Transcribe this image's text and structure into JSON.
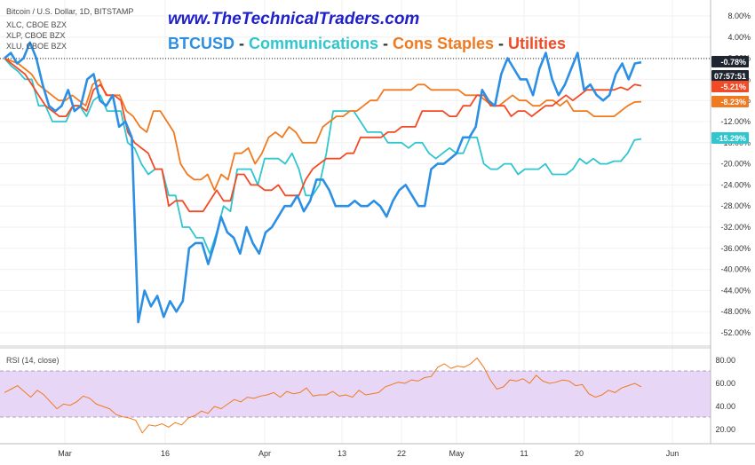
{
  "chart_data": {
    "type": "line",
    "symbol_lines": [
      "Bitcoin / U.S. Dollar, 1D, BITSTAMP",
      "XLC, CBOE BZX",
      "XLP, CBOE BZX",
      "XLU, CBOE BZX"
    ],
    "website": "www.TheTechnicalTraders.com",
    "headline": {
      "parts": [
        {
          "text": "BTCUSD",
          "color": "#2c8fe3"
        },
        {
          "text": " - ",
          "color": "#333333"
        },
        {
          "text": "Communications",
          "color": "#2fc6cf"
        },
        {
          "text": " - ",
          "color": "#333333"
        },
        {
          "text": "Cons Staples",
          "color": "#f07a1f"
        },
        {
          "text": " - ",
          "color": "#333333"
        },
        {
          "text": "Utilities",
          "color": "#f24a25"
        }
      ]
    },
    "x_tick_labels": [
      "Mar",
      "16",
      "Apr",
      "13",
      "22",
      "May",
      "11",
      "20",
      "Jun"
    ],
    "y_tick_labels": [
      "8.00%",
      "4.00%",
      "0.00%",
      "-4.00%",
      "-8.00%",
      "-12.00%",
      "-16.00%",
      "-20.00%",
      "-24.00%",
      "-28.00%",
      "-32.00%",
      "-36.00%",
      "-40.00%",
      "-44.00%",
      "-48.00%",
      "-52.00%"
    ],
    "ylim": [
      -54,
      10
    ],
    "badges": [
      {
        "text": "-0.78%",
        "color": "#1e2430"
      },
      {
        "text": "07:57:51",
        "color": "#1e2430"
      },
      {
        "text": "-5.21%",
        "color": "#f24a25"
      },
      {
        "text": "-8.23%",
        "color": "#f07a1f"
      },
      {
        "text": "-15.29%",
        "color": "#2fc6cf"
      }
    ],
    "series": [
      {
        "color": "#2fc6cf",
        "values": [
          0,
          -1.5,
          -2.5,
          -4,
          -4,
          -9,
          -9,
          -12,
          -12,
          -12,
          -9,
          -9,
          -11,
          -8,
          -7,
          -10,
          -10,
          -10,
          -16,
          -17,
          -20,
          -22,
          -21,
          -21,
          -26,
          -26,
          -32,
          -32,
          -34,
          -34,
          -37,
          -33,
          -28,
          -29,
          -21,
          -21,
          -21,
          -24,
          -19,
          -19,
          -19,
          -20,
          -18,
          -21,
          -26,
          -26,
          -24,
          -18,
          -10,
          -10,
          -10,
          -10,
          -12,
          -14,
          -14,
          -14,
          -16,
          -16,
          -16,
          -17,
          -16,
          -16,
          -18,
          -19,
          -18,
          -17,
          -18,
          -18,
          -15,
          -15,
          -20,
          -21,
          -21,
          -20,
          -20,
          -22,
          -21,
          -21,
          -21,
          -20,
          -22,
          -22,
          -22,
          -21,
          -19,
          -20,
          -19,
          -20,
          -20,
          -19.5,
          -19.5,
          -18,
          -15.5,
          -15.3
        ]
      },
      {
        "color": "#f07a1f",
        "values": [
          0,
          -0.5,
          -1,
          -2,
          -3,
          -5,
          -6,
          -7,
          -8,
          -8,
          -7,
          -8,
          -9,
          -5,
          -4,
          -7,
          -7,
          -7,
          -10,
          -11,
          -13,
          -14,
          -10,
          -10,
          -12,
          -14,
          -20,
          -22,
          -23,
          -23,
          -22,
          -25,
          -22,
          -23,
          -18,
          -18,
          -17,
          -20,
          -18,
          -15,
          -14,
          -15,
          -13,
          -14,
          -16,
          -16,
          -16,
          -13,
          -12,
          -11,
          -11,
          -10,
          -10,
          -9,
          -8,
          -8,
          -6,
          -6,
          -6,
          -6,
          -6,
          -5,
          -5,
          -6,
          -6,
          -6,
          -6,
          -6,
          -7,
          -7,
          -7,
          -8,
          -9,
          -9,
          -8,
          -7,
          -8,
          -8,
          -9,
          -9,
          -8,
          -8,
          -9,
          -8,
          -10,
          -10,
          -10,
          -11,
          -11,
          -11,
          -11,
          -10,
          -9,
          -8.3,
          -8.23
        ]
      },
      {
        "color": "#f24a25",
        "values": [
          0,
          -1,
          -2,
          -3,
          -5,
          -7,
          -9,
          -10,
          -11,
          -11,
          -9,
          -9,
          -10,
          -6,
          -5,
          -7,
          -7,
          -8,
          -14,
          -16,
          -17,
          -18,
          -21,
          -21,
          -28,
          -27,
          -27,
          -29,
          -29,
          -29,
          -27,
          -25,
          -27,
          -27,
          -22,
          -22,
          -24,
          -24,
          -25,
          -25,
          -24,
          -26,
          -26,
          -26,
          -23,
          -21,
          -20,
          -19,
          -19,
          -19,
          -18,
          -18,
          -15,
          -15,
          -15,
          -15,
          -14,
          -14,
          -13,
          -13,
          -13,
          -10,
          -10,
          -10,
          -10,
          -11,
          -11,
          -9,
          -9,
          -7,
          -7,
          -9,
          -9,
          -9,
          -11,
          -10,
          -10,
          -11,
          -10,
          -9,
          -9,
          -8,
          -7,
          -8,
          -7,
          -6,
          -6,
          -6,
          -6,
          -6,
          -5.5,
          -6,
          -5,
          -5.21
        ]
      },
      {
        "color": "#2c8fe3",
        "values": [
          0,
          1,
          -1,
          0,
          3,
          0,
          -5,
          -9,
          -10,
          -9,
          -6,
          -10,
          -9,
          -4,
          -3,
          -8,
          -9,
          -7,
          -13,
          -12,
          -15,
          -50,
          -44,
          -47,
          -45,
          -49,
          -46,
          -48,
          -46,
          -36,
          -35,
          -35,
          -39,
          -35,
          -30,
          -33,
          -34,
          -37,
          -32,
          -35,
          -37,
          -33,
          -32,
          -30,
          -28,
          -28,
          -26,
          -29,
          -27,
          -23,
          -23,
          -25,
          -28,
          -28,
          -28,
          -27,
          -28,
          -28,
          -27,
          -28,
          -30,
          -27,
          -25,
          -24,
          -26,
          -28,
          -28,
          -21,
          -20,
          -20,
          -19,
          -18,
          -15,
          -15,
          -13,
          -6,
          -8,
          -9,
          -3,
          0,
          -2,
          -4,
          -4,
          -7,
          -2,
          1,
          -4,
          -7,
          -5,
          -2,
          1,
          -6,
          -5,
          -7,
          -8,
          -7,
          -3,
          -1,
          -4,
          -1,
          -0.78
        ]
      }
    ]
  },
  "rsi": {
    "label": "RSI (14, close)",
    "y_tick_labels": [
      "80.00",
      "60.00",
      "40.00",
      "20.00"
    ],
    "ylim": [
      10,
      90
    ],
    "upper_band": 70,
    "lower_band": 30,
    "line_color": "#f07a1f",
    "band_color": "#e8d6f7",
    "values": [
      52,
      55,
      58,
      53,
      48,
      54,
      50,
      44,
      38,
      42,
      41,
      44,
      49,
      47,
      42,
      40,
      38,
      33,
      31,
      30,
      28,
      17,
      24,
      23,
      25,
      22,
      26,
      24,
      30,
      32,
      36,
      34,
      40,
      38,
      42,
      46,
      44,
      48,
      47,
      49,
      50,
      52,
      48,
      53,
      51,
      52,
      56,
      49,
      50,
      50,
      53,
      49,
      50,
      48,
      54,
      50,
      51,
      52,
      57,
      59,
      61,
      60,
      63,
      62,
      65,
      66,
      74,
      77,
      73,
      75,
      74,
      77,
      82,
      74,
      63,
      55,
      57,
      63,
      62,
      64,
      60,
      67,
      62,
      60,
      61,
      63,
      62,
      58,
      59,
      51,
      48,
      50,
      54,
      52,
      56,
      58,
      60,
      57
    ]
  }
}
